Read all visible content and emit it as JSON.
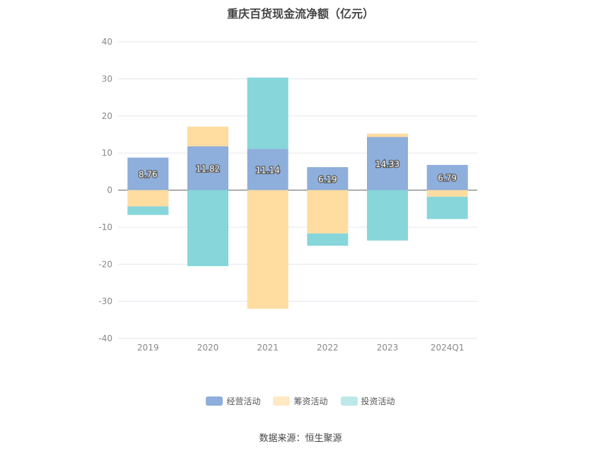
{
  "chart_data": {
    "type": "bar",
    "stacked": true,
    "title": "重庆百货现金流净额（亿元）",
    "categories": [
      "2019",
      "2020",
      "2021",
      "2022",
      "2023",
      "2024Q1"
    ],
    "ylim": [
      -40,
      40
    ],
    "yticks": [
      "40",
      "30",
      "20",
      "10",
      "0",
      "-10",
      "-20",
      "-30",
      "-40"
    ],
    "grid": true,
    "legend_position": "bottom",
    "series": [
      {
        "name": "经营活动",
        "color": "#8eaedb",
        "values": [
          8.76,
          11.82,
          11.14,
          6.19,
          14.33,
          6.79
        ],
        "labels": [
          "8.76",
          "11.82",
          "11.14",
          "6.19",
          "14.33",
          "6.79"
        ]
      },
      {
        "name": "筹资活动",
        "color": "#ffdca0",
        "values": [
          -4.4,
          5.3,
          -32.0,
          -11.7,
          0.9,
          -1.8
        ]
      },
      {
        "name": "投资活动",
        "color": "#86d6da",
        "values": [
          -2.3,
          -20.5,
          19.2,
          -3.3,
          -13.6,
          -6.0
        ]
      }
    ]
  },
  "source": "数据来源：恒生聚源"
}
